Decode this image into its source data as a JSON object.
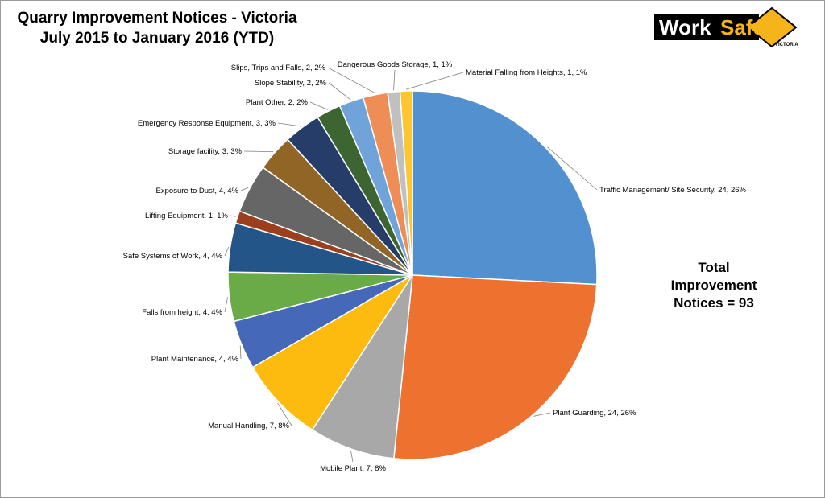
{
  "title_line1": "Quarry Improvement Notices - Victoria",
  "title_line2": "July 2015 to January 2016 (YTD)",
  "logo": {
    "text_work": "Work",
    "text_safe": "Safe",
    "text_sub": "VICTORIA",
    "colors": {
      "black": "#000000",
      "yellow": "#f5b41a"
    }
  },
  "total": {
    "line1": "Total",
    "line2": "Improvement",
    "line3": "Notices = 93"
  },
  "chart_data": {
    "type": "pie",
    "title": "Quarry Improvement Notices - Victoria July 2015 to January 2016 (YTD)",
    "total": 93,
    "start": "12 o'clock, clockwise",
    "slices": [
      {
        "name": "Traffic Management/ Site Security",
        "value": 24,
        "percent": 26,
        "label": "Traffic Management/ Site Security, 24, 26%",
        "color": "#5290d0"
      },
      {
        "name": "Plant Guarding",
        "value": 24,
        "percent": 26,
        "label": "Plant Guarding, 24, 26%",
        "color": "#ed7230"
      },
      {
        "name": "Mobile Plant",
        "value": 7,
        "percent": 8,
        "label": "Mobile Plant, 7, 8%",
        "color": "#a8a8a8"
      },
      {
        "name": "Manual Handling",
        "value": 7,
        "percent": 8,
        "label": "Manual Handling, 7, 8%",
        "color": "#fdbb10"
      },
      {
        "name": "Plant Maintenance",
        "value": 4,
        "percent": 4,
        "label": "Plant Maintenance, 4, 4%",
        "color": "#4569b8"
      },
      {
        "name": "Falls from height",
        "value": 4,
        "percent": 4,
        "label": "Falls from height, 4, 4%",
        "color": "#6aab47"
      },
      {
        "name": "Safe Systems of Work",
        "value": 4,
        "percent": 4,
        "label": "Safe Systems of Work, 4, 4%",
        "color": "#245588"
      },
      {
        "name": "Lifting Equipment",
        "value": 1,
        "percent": 1,
        "label": "Lifting Equipment, 1, 1%",
        "color": "#9c3f1c"
      },
      {
        "name": "Exposure to Dust",
        "value": 4,
        "percent": 4,
        "label": "Exposure to Dust, 4, 4%",
        "color": "#666666"
      },
      {
        "name": "Storage facility",
        "value": 3,
        "percent": 3,
        "label": "Storage facility, 3, 3%",
        "color": "#916526"
      },
      {
        "name": "Emergency Response Equipment",
        "value": 3,
        "percent": 3,
        "label": "Emergency Response Equipment, 3, 3%",
        "color": "#263d69"
      },
      {
        "name": "Plant Other",
        "value": 2,
        "percent": 2,
        "label": "Plant Other, 2, 2%",
        "color": "#3d6531"
      },
      {
        "name": "Slope Stability",
        "value": 2,
        "percent": 2,
        "label": "Slope Stability, 2, 2%",
        "color": "#71a3db"
      },
      {
        "name": "Slips, Trips and Falls",
        "value": 2,
        "percent": 2,
        "label": "Slips, Trips and Falls, 2, 2%",
        "color": "#ef8d57"
      },
      {
        "name": "Dangerous Goods Storage",
        "value": 1,
        "percent": 1,
        "label": "Dangerous Goods Storage, 1, 1%",
        "color": "#c0c0c0"
      },
      {
        "name": "Material Falling from Heights",
        "value": 1,
        "percent": 1,
        "label": "Material Falling from Heights, 1, 1%",
        "color": "#fdc52f"
      }
    ]
  }
}
